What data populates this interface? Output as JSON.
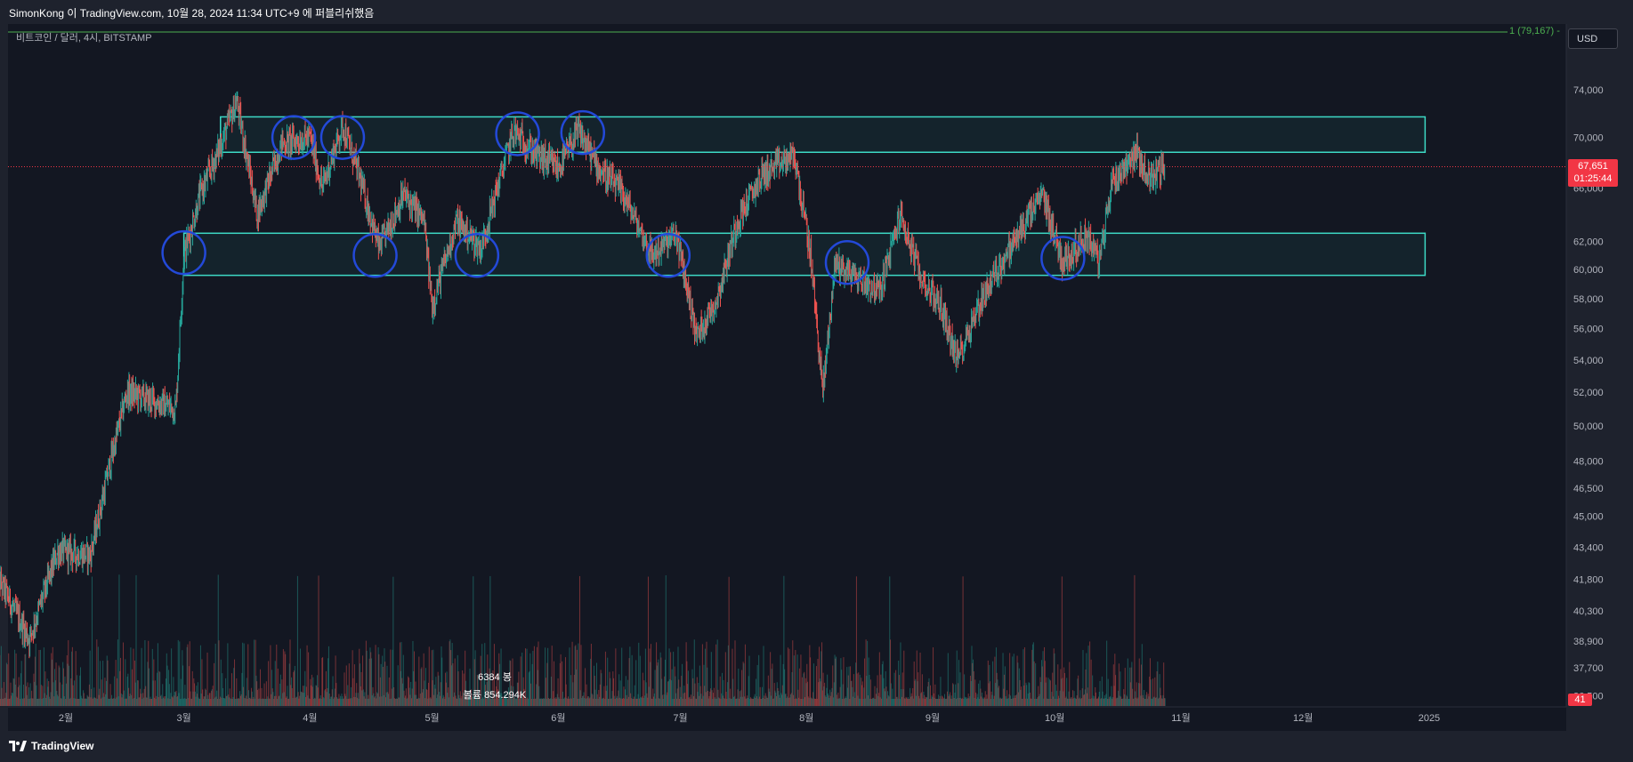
{
  "header": {
    "published_text": "SimonKong 이 TradingView.com, 10월 28, 2024 11:34 UTC+9 에 퍼블리쉬했음"
  },
  "symbol": {
    "description": "비트코인 / 달러, 4시, BITSTAMP"
  },
  "currency_button": "USD",
  "horizontal_line_label": "1 (79,167) -",
  "last_price": {
    "price": "67,651",
    "countdown": "01:25:44"
  },
  "volume_last": "41",
  "bars_count": "6384 봉",
  "volume_total": "볼륨 854.294K",
  "branding": "TradingView",
  "colors": {
    "background": "#131722",
    "up": "#26a69a",
    "down": "#ef5350",
    "zone_border": "#3dd9c5",
    "circle": "#2349d8",
    "last_price": "#f23645"
  },
  "chart_data": {
    "type": "candlestick",
    "title": "비트코인 / 달러, 4시, BITSTAMP",
    "timeframe": "4h",
    "x_tick_labels": [
      "2월",
      "3월",
      "4월",
      "5월",
      "6월",
      "7월",
      "8월",
      "9월",
      "10월",
      "11월",
      "12월",
      "2025"
    ],
    "x_tick_dates": [
      "2024-02-01",
      "2024-03-01",
      "2024-04-01",
      "2024-05-01",
      "2024-06-01",
      "2024-07-01",
      "2024-08-01",
      "2024-09-01",
      "2024-10-01",
      "2024-11-01",
      "2024-12-01",
      "2025-01-01"
    ],
    "y_tick_labels": [
      "74,000",
      "70,000",
      "66,000",
      "62,000",
      "60,000",
      "58,000",
      "56,000",
      "54,000",
      "52,000",
      "50,000",
      "48,000",
      "46,500",
      "45,000",
      "43,400",
      "41,800",
      "40,300",
      "38,900",
      "37,700",
      "36,500"
    ],
    "y_ticks": [
      74000,
      70000,
      66000,
      62000,
      60000,
      58000,
      56000,
      54000,
      52000,
      50000,
      48000,
      46500,
      45000,
      43400,
      41800,
      40300,
      38900,
      37700,
      36500
    ],
    "y_scale": "log",
    "last_price": 67651,
    "horizontal_line": 79167,
    "price_path": [
      {
        "date": "2024-01-15",
        "price": 42000
      },
      {
        "date": "2024-01-23",
        "price": 39000
      },
      {
        "date": "2024-01-30",
        "price": 43200
      },
      {
        "date": "2024-02-07",
        "price": 43000
      },
      {
        "date": "2024-02-12",
        "price": 48000
      },
      {
        "date": "2024-02-16",
        "price": 52000
      },
      {
        "date": "2024-02-22",
        "price": 51500
      },
      {
        "date": "2024-02-28",
        "price": 51000
      },
      {
        "date": "2024-03-01",
        "price": 61000
      },
      {
        "date": "2024-03-05",
        "price": 65500
      },
      {
        "date": "2024-03-09",
        "price": 68500
      },
      {
        "date": "2024-03-14",
        "price": 73000
      },
      {
        "date": "2024-03-19",
        "price": 64000
      },
      {
        "date": "2024-03-25",
        "price": 69500
      },
      {
        "date": "2024-04-01",
        "price": 70000
      },
      {
        "date": "2024-04-04",
        "price": 66000
      },
      {
        "date": "2024-04-09",
        "price": 71000
      },
      {
        "date": "2024-04-13",
        "price": 67000
      },
      {
        "date": "2024-04-18",
        "price": 61500
      },
      {
        "date": "2024-04-24",
        "price": 65500
      },
      {
        "date": "2024-04-29",
        "price": 63500
      },
      {
        "date": "2024-05-01",
        "price": 57500
      },
      {
        "date": "2024-05-07",
        "price": 63500
      },
      {
        "date": "2024-05-13",
        "price": 61500
      },
      {
        "date": "2024-05-17",
        "price": 66000
      },
      {
        "date": "2024-05-21",
        "price": 70500
      },
      {
        "date": "2024-05-27",
        "price": 68500
      },
      {
        "date": "2024-06-01",
        "price": 67500
      },
      {
        "date": "2024-06-06",
        "price": 70500
      },
      {
        "date": "2024-06-11",
        "price": 67500
      },
      {
        "date": "2024-06-17",
        "price": 65500
      },
      {
        "date": "2024-06-24",
        "price": 61000
      },
      {
        "date": "2024-06-30",
        "price": 62500
      },
      {
        "date": "2024-07-05",
        "price": 55500
      },
      {
        "date": "2024-07-10",
        "price": 58000
      },
      {
        "date": "2024-07-15",
        "price": 63500
      },
      {
        "date": "2024-07-21",
        "price": 67000
      },
      {
        "date": "2024-07-29",
        "price": 68500
      },
      {
        "date": "2024-08-02",
        "price": 61000
      },
      {
        "date": "2024-08-05",
        "price": 52000
      },
      {
        "date": "2024-08-08",
        "price": 60500
      },
      {
        "date": "2024-08-13",
        "price": 59500
      },
      {
        "date": "2024-08-19",
        "price": 58500
      },
      {
        "date": "2024-08-24",
        "price": 64000
      },
      {
        "date": "2024-08-29",
        "price": 59500
      },
      {
        "date": "2024-09-03",
        "price": 57500
      },
      {
        "date": "2024-09-07",
        "price": 54000
      },
      {
        "date": "2024-09-13",
        "price": 58000
      },
      {
        "date": "2024-09-18",
        "price": 60500
      },
      {
        "date": "2024-09-24",
        "price": 63500
      },
      {
        "date": "2024-09-28",
        "price": 65500
      },
      {
        "date": "2024-10-03",
        "price": 60500
      },
      {
        "date": "2024-10-09",
        "price": 62500
      },
      {
        "date": "2024-10-12",
        "price": 60500
      },
      {
        "date": "2024-10-15",
        "price": 66500
      },
      {
        "date": "2024-10-21",
        "price": 68800
      },
      {
        "date": "2024-10-24",
        "price": 66800
      },
      {
        "date": "2024-10-28",
        "price": 67651
      }
    ],
    "zones": [
      {
        "start": "2024-03-10",
        "end": "2024-12-31",
        "low": 68800,
        "high": 71700
      },
      {
        "start": "2024-03-01",
        "end": "2024-12-31",
        "low": 59600,
        "high": 62600
      }
    ],
    "circles": [
      {
        "date": "2024-03-28",
        "price": 70000
      },
      {
        "date": "2024-04-09",
        "price": 70000
      },
      {
        "date": "2024-04-17",
        "price": 61000
      },
      {
        "date": "2024-05-12",
        "price": 61000
      },
      {
        "date": "2024-05-22",
        "price": 70300
      },
      {
        "date": "2024-06-07",
        "price": 70400
      },
      {
        "date": "2024-03-01",
        "price": 61200
      },
      {
        "date": "2024-06-28",
        "price": 61000
      },
      {
        "date": "2024-08-11",
        "price": 60500
      },
      {
        "date": "2024-10-03",
        "price": 60800
      }
    ],
    "grid": false,
    "volume_pane": true
  }
}
